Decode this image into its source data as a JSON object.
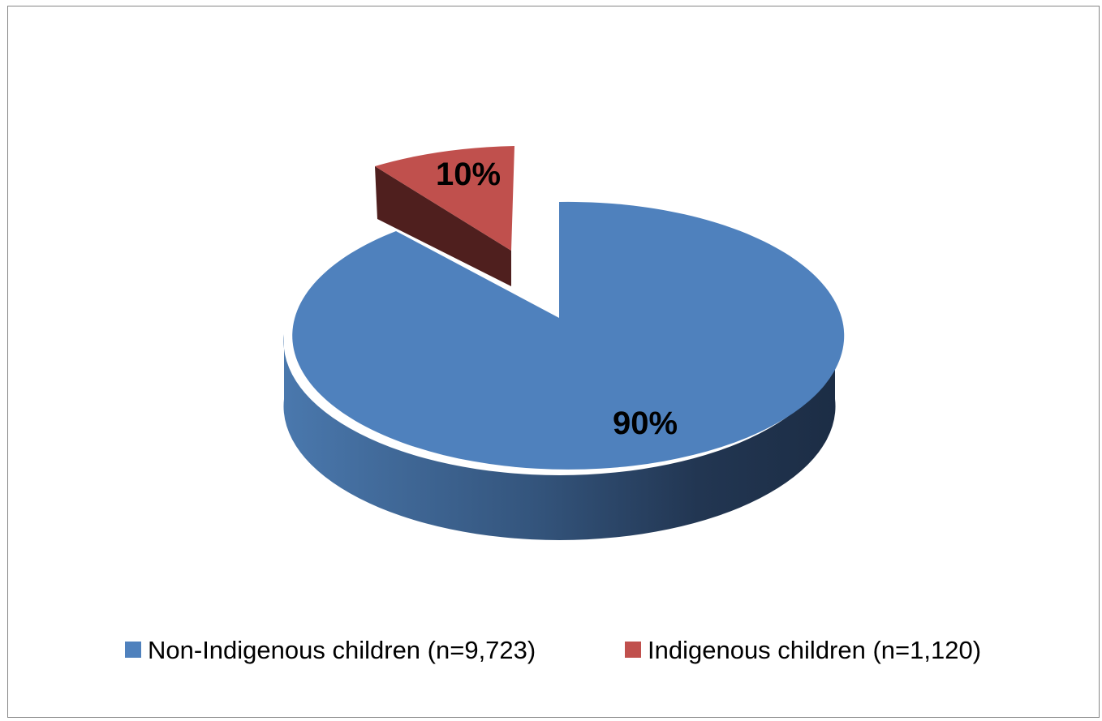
{
  "chart_data": {
    "type": "pie",
    "title": "",
    "series": [
      {
        "name": "",
        "values": [
          90,
          10
        ],
        "data_labels": [
          "90%",
          "10%"
        ]
      }
    ],
    "categories": [
      "Non-Indigenous children (n=9,723)",
      "Indigenous children (n=1,120)"
    ],
    "counts": [
      9723,
      1120
    ],
    "colors": [
      "#4f81bd",
      "#c0504d"
    ],
    "exploded": [
      false,
      true
    ],
    "style": "3d-pie",
    "legend_position": "bottom"
  }
}
